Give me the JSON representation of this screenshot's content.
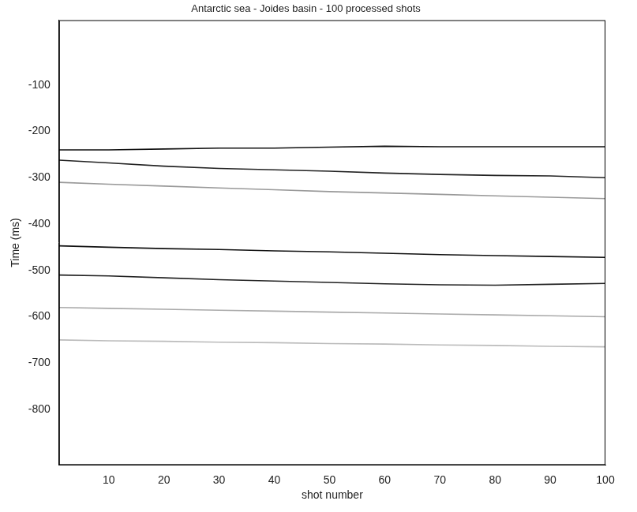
{
  "chart_data": {
    "type": "line",
    "title": "Antarctic sea - Joides basin - 100 processed shots",
    "x_label": "shot number",
    "y_label": "Time (ms)",
    "x": [
      1,
      10,
      20,
      30,
      40,
      50,
      60,
      70,
      80,
      90,
      100
    ],
    "series": [
      {
        "color": "#111111",
        "values": [
          -240,
          -240,
          -238,
          -236,
          -236,
          -234,
          -232,
          -233,
          -233,
          -233,
          -233
        ]
      },
      {
        "color": "#222222",
        "values": [
          -262,
          -268,
          -275,
          -280,
          -283,
          -286,
          -290,
          -293,
          -295,
          -296,
          -300
        ]
      },
      {
        "color": "#999999",
        "values": [
          -310,
          -314,
          -318,
          -322,
          -326,
          -330,
          -333,
          -336,
          -339,
          -342,
          -345
        ]
      },
      {
        "color": "#111111",
        "values": [
          -447,
          -450,
          -453,
          -455,
          -458,
          -460,
          -463,
          -466,
          -468,
          -470,
          -472
        ]
      },
      {
        "color": "#222222",
        "values": [
          -510,
          -512,
          -516,
          -520,
          -523,
          -526,
          -529,
          -531,
          -532,
          -530,
          -528
        ]
      },
      {
        "color": "#aaaaaa",
        "values": [
          -580,
          -582,
          -584,
          -586,
          -588,
          -590,
          -592,
          -594,
          -596,
          -598,
          -600
        ]
      },
      {
        "color": "#bbbbbb",
        "values": [
          -650,
          -652,
          -653,
          -655,
          -656,
          -658,
          -659,
          -661,
          -662,
          -664,
          -665
        ]
      }
    ],
    "xlim": [
      1,
      100
    ],
    "xticks": [
      10,
      20,
      30,
      40,
      50,
      60,
      70,
      80,
      90,
      100
    ],
    "ylim": [
      -920,
      40
    ],
    "yticks": [
      -800,
      -700,
      -600,
      -500,
      -400,
      -300,
      -200,
      -100
    ],
    "grid": false,
    "marker": "none",
    "line_style": "solid"
  }
}
